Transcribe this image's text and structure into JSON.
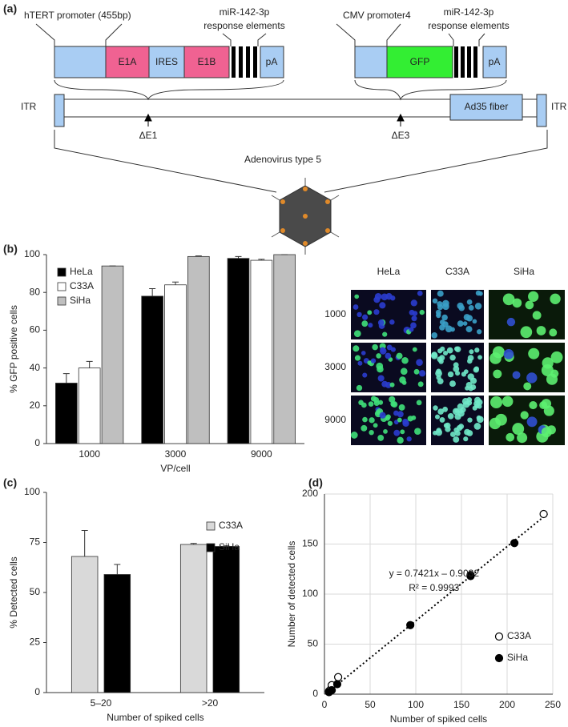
{
  "panel_labels": [
    "(a)",
    "(b)",
    "(c)",
    "(d)"
  ],
  "diagram": {
    "left_promoter": "hTERT promoter (455bp)",
    "left_response": [
      "miR-142-3p",
      "response elements"
    ],
    "right_promoter": "CMV promoter4",
    "right_response": [
      "miR-142-3p",
      "response elements"
    ],
    "left_segments": [
      "E1A",
      "IRES",
      "E1B",
      "pA"
    ],
    "right_segments": [
      "GFP",
      "pA"
    ],
    "fiber": "Ad35 fiber",
    "itr": [
      "ITR",
      "ITR"
    ],
    "deletions": [
      "ΔE1",
      "ΔE3"
    ],
    "virus": "Adenovirus type 5"
  },
  "micrographs": {
    "columns": [
      "HeLa",
      "C33A",
      "SiHa"
    ],
    "rows": [
      "1000",
      "3000",
      "9000"
    ]
  },
  "chart_data": [
    {
      "type": "bar",
      "xlabel": "VP/cell",
      "ylabel": "% GFP positive cells",
      "categories": [
        "1000",
        "3000",
        "9000"
      ],
      "series": [
        {
          "name": "HeLa",
          "color": "#000000",
          "values": [
            32,
            78,
            98
          ],
          "errors": [
            5,
            4,
            1
          ]
        },
        {
          "name": "C33A",
          "color": "#ffffff",
          "values": [
            40,
            84,
            97
          ],
          "errors": [
            3.5,
            1.5,
            0.5
          ]
        },
        {
          "name": "SiHa",
          "color": "#bfbfbf",
          "values": [
            94,
            99,
            100
          ],
          "errors": [
            0,
            0.3,
            0
          ]
        }
      ],
      "ylim": [
        0,
        100
      ],
      "yticks": [
        0,
        20,
        40,
        60,
        80,
        100
      ],
      "legend": "upper left"
    },
    {
      "type": "bar",
      "xlabel": "Number of spiked cells",
      "ylabel": "% Detected cells",
      "categories": [
        "5–20",
        ">20"
      ],
      "series": [
        {
          "name": "C33A",
          "color": "#d9d9d9",
          "values": [
            68,
            74
          ],
          "errors": [
            13,
            0.5
          ]
        },
        {
          "name": "SiHa",
          "color": "#000000",
          "values": [
            59,
            73
          ],
          "errors": [
            5,
            0.3
          ]
        }
      ],
      "ylim": [
        0,
        100
      ],
      "yticks": [
        0,
        25,
        50,
        75,
        100
      ],
      "legend": "upper right"
    },
    {
      "type": "scatter",
      "xlabel": "Number of spiked cells",
      "ylabel": "Number of detected cells",
      "series": [
        {
          "name": "C33A",
          "color": "#ffffff",
          "x": [
            5,
            7,
            8,
            15,
            160,
            240
          ],
          "values": [
            3,
            5,
            9,
            17,
            119,
            180
          ]
        },
        {
          "name": "SiHa",
          "color": "#000000",
          "x": [
            5,
            8,
            14,
            94,
            160,
            208
          ],
          "values": [
            2,
            4,
            10,
            69,
            118,
            151
          ]
        }
      ],
      "xlim": [
        0,
        250
      ],
      "xticks": [
        0,
        50,
        100,
        150,
        200,
        250
      ],
      "ylim": [
        0,
        200
      ],
      "yticks": [
        0,
        50,
        100,
        150,
        200
      ],
      "grid": true,
      "legend": "lower right",
      "trendline": {
        "slope": 0.7421,
        "intercept": -0.9032
      },
      "annotations": [
        "y = 0.7421x – 0.9032",
        "R² = 0.9993"
      ]
    }
  ]
}
